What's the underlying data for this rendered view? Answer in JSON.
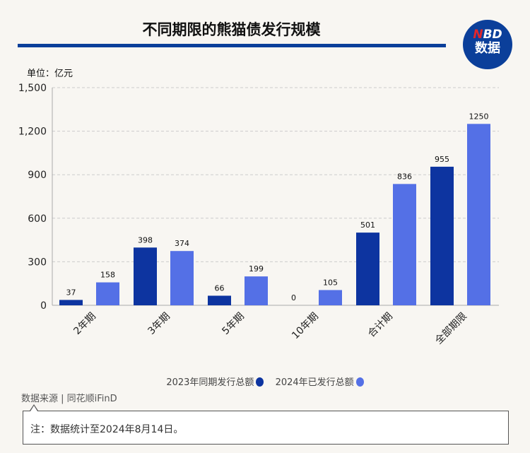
{
  "title": "不同期限的熊猫债发行规模",
  "logo": {
    "n": "N",
    "bd": "BD",
    "line2": "数据"
  },
  "unit": "单位：亿元",
  "chart_data": {
    "type": "bar",
    "title": "不同期限的熊猫债发行规模",
    "ylabel": "单位：亿元",
    "categories": [
      "2年期",
      "3年期",
      "5年期",
      "10年期",
      "合计期",
      "全部期限"
    ],
    "series": [
      {
        "name": "2023年同期发行总额",
        "color": "#0d34a0",
        "values": [
          37,
          398,
          66,
          0,
          501,
          955
        ]
      },
      {
        "name": "2024年已发行总额",
        "color": "#5470e6",
        "values": [
          158,
          374,
          199,
          105,
          836,
          1250
        ]
      }
    ],
    "ylim": [
      0,
      1500
    ],
    "yticks": [
      0,
      300,
      600,
      900,
      1200,
      1500
    ],
    "ytick_labels": [
      "0",
      "300",
      "600",
      "900",
      "1,200",
      "1,500"
    ],
    "grid": true,
    "legend": "bottom"
  },
  "source": "数据来源 | 同花顺iFinD",
  "note": "注：数据统计至2024年8月14日。"
}
